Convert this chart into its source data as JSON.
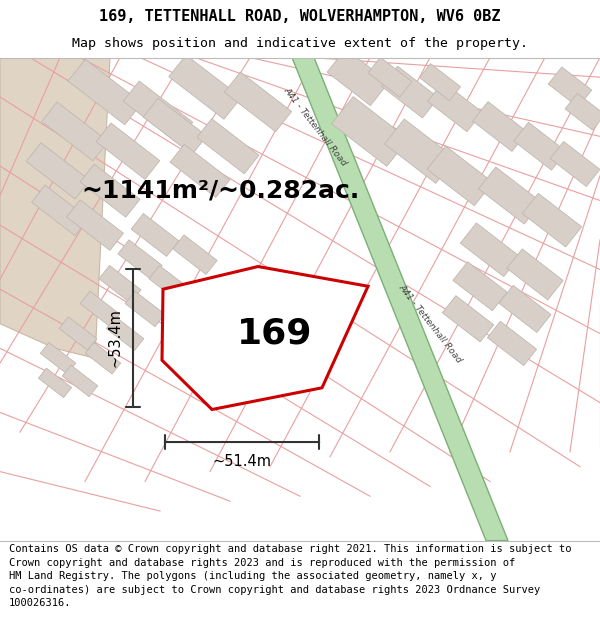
{
  "title_line1": "169, TETTENHALL ROAD, WOLVERHAMPTON, WV6 0BZ",
  "title_line2": "Map shows position and indicative extent of the property.",
  "footer_text": "Contains OS data © Crown copyright and database right 2021. This information is subject to\nCrown copyright and database rights 2023 and is reproduced with the permission of\nHM Land Registry. The polygons (including the associated geometry, namely x, y\nco-ordinates) are subject to Crown copyright and database rights 2023 Ordnance Survey\n100026316.",
  "area_text": "~1141m²/~0.282ac.",
  "number_label": "169",
  "dim_width": "~51.4m",
  "dim_height": "~53.4m",
  "road_label": "A41 - Tettenhall Road",
  "map_bg": "#f7f4f0",
  "plot_line_color": "#e8a0a0",
  "building_fc": "#d8d0c8",
  "building_ec": "#c0b8b0",
  "road_fc": "#b8ddb0",
  "road_ec": "#7ab077",
  "road_text_color": "#444444",
  "left_area_fc": "#e0d4c4",
  "left_area_ec": "#c8b8a8",
  "prop_fc": "white",
  "prop_ec": "#cc0000",
  "prop_lw": 2.2,
  "dim_color": "#333333",
  "title_fontsize": 11,
  "subtitle_fontsize": 9.5,
  "footer_fontsize": 7.5,
  "area_fontsize": 18,
  "number_fontsize": 26,
  "dim_fontsize": 10.5,
  "road_fontsize": 6.5
}
